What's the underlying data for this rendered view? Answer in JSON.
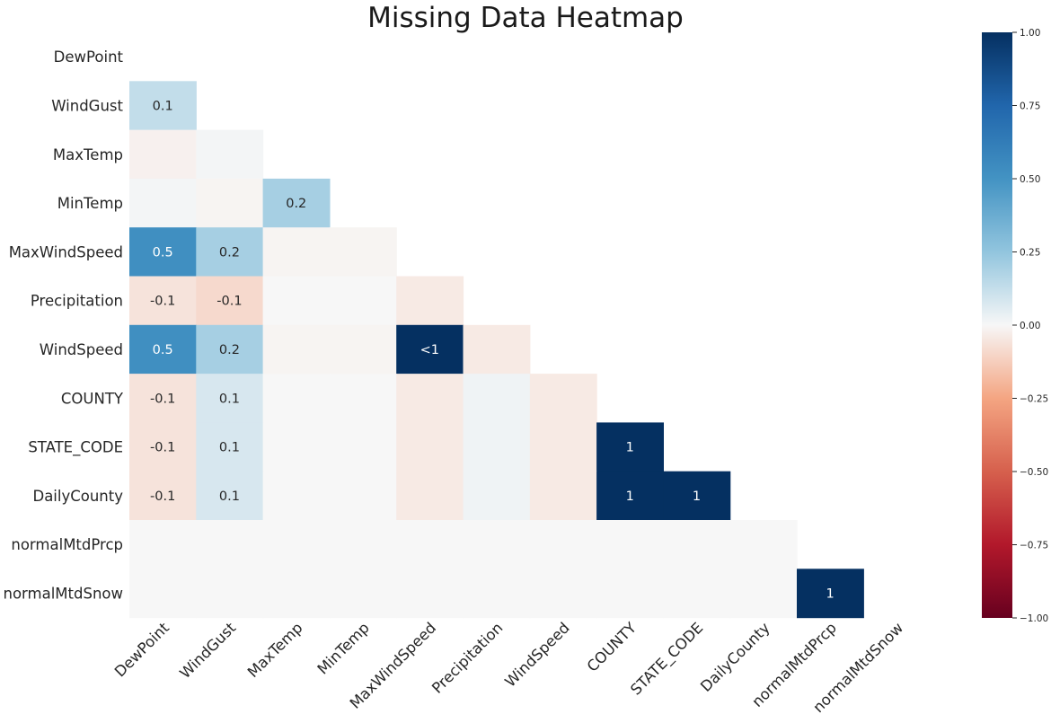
{
  "chart_data": {
    "type": "heatmap",
    "title": "Missing Data Heatmap",
    "variables": [
      "DewPoint",
      "WindGust",
      "MaxTemp",
      "MinTemp",
      "MaxWindSpeed",
      "Precipitation",
      "WindSpeed",
      "COUNTY",
      "STATE_CODE",
      "DailyCounty",
      "normalMtdPrcp",
      "normalMtdSnow"
    ],
    "matrix": [
      [
        null,
        null,
        null,
        null,
        null,
        null,
        null,
        null,
        null,
        null,
        null,
        null
      ],
      [
        0.13,
        null,
        null,
        null,
        null,
        null,
        null,
        null,
        null,
        null,
        null,
        null
      ],
      [
        -0.02,
        0.01,
        null,
        null,
        null,
        null,
        null,
        null,
        null,
        null,
        null,
        null
      ],
      [
        0.01,
        -0.01,
        0.2,
        null,
        null,
        null,
        null,
        null,
        null,
        null,
        null,
        null
      ],
      [
        0.52,
        0.2,
        -0.01,
        -0.01,
        null,
        null,
        null,
        null,
        null,
        null,
        null,
        null
      ],
      [
        -0.06,
        -0.09,
        0.0,
        0.0,
        -0.04,
        null,
        null,
        null,
        null,
        null,
        null,
        null
      ],
      [
        0.52,
        0.2,
        -0.01,
        -0.01,
        1.0,
        -0.04,
        null,
        null,
        null,
        null,
        null,
        null
      ],
      [
        -0.06,
        0.08,
        0.0,
        0.0,
        -0.04,
        0.02,
        -0.04,
        null,
        null,
        null,
        null,
        null
      ],
      [
        -0.06,
        0.08,
        0.0,
        0.0,
        -0.04,
        0.02,
        -0.04,
        1.0,
        null,
        null,
        null,
        null
      ],
      [
        -0.06,
        0.08,
        0.0,
        0.0,
        -0.04,
        0.02,
        -0.04,
        1.0,
        1.0,
        null,
        null,
        null
      ],
      [
        0.0,
        0.0,
        0.0,
        0.0,
        0.0,
        0.0,
        0.0,
        0.0,
        0.0,
        0.0,
        null,
        null
      ],
      [
        0.0,
        0.0,
        0.0,
        0.0,
        0.0,
        0.0,
        0.0,
        0.0,
        0.0,
        0.0,
        1.0,
        null
      ]
    ],
    "labels": [
      [
        null,
        null,
        null,
        null,
        null,
        null,
        null,
        null,
        null,
        null,
        null,
        null
      ],
      [
        "0.1",
        null,
        null,
        null,
        null,
        null,
        null,
        null,
        null,
        null,
        null,
        null
      ],
      [
        null,
        null,
        null,
        null,
        null,
        null,
        null,
        null,
        null,
        null,
        null,
        null
      ],
      [
        null,
        null,
        "0.2",
        null,
        null,
        null,
        null,
        null,
        null,
        null,
        null,
        null
      ],
      [
        "0.5",
        "0.2",
        null,
        null,
        null,
        null,
        null,
        null,
        null,
        null,
        null,
        null
      ],
      [
        "-0.1",
        "-0.1",
        null,
        null,
        null,
        null,
        null,
        null,
        null,
        null,
        null,
        null
      ],
      [
        "0.5",
        "0.2",
        null,
        null,
        "<1",
        null,
        null,
        null,
        null,
        null,
        null,
        null
      ],
      [
        "-0.1",
        "0.1",
        null,
        null,
        null,
        null,
        null,
        null,
        null,
        null,
        null,
        null
      ],
      [
        "-0.1",
        "0.1",
        null,
        null,
        null,
        null,
        null,
        "1",
        null,
        null,
        null,
        null
      ],
      [
        "-0.1",
        "0.1",
        null,
        null,
        null,
        null,
        null,
        "1",
        "1",
        null,
        null,
        null
      ],
      [
        null,
        null,
        null,
        null,
        null,
        null,
        null,
        null,
        null,
        null,
        null,
        null
      ],
      [
        null,
        null,
        null,
        null,
        null,
        null,
        null,
        null,
        null,
        null,
        "1",
        null
      ]
    ],
    "colorbar": {
      "range": [
        -1,
        1
      ],
      "ticks": [
        "1.00",
        "0.75",
        "0.50",
        "0.25",
        "0.00",
        "−0.25",
        "−0.50",
        "−0.75",
        "−1.00"
      ],
      "tick_values": [
        1,
        0.75,
        0.5,
        0.25,
        0,
        -0.25,
        -0.5,
        -0.75,
        -1
      ],
      "colormap": "RdBu"
    }
  }
}
